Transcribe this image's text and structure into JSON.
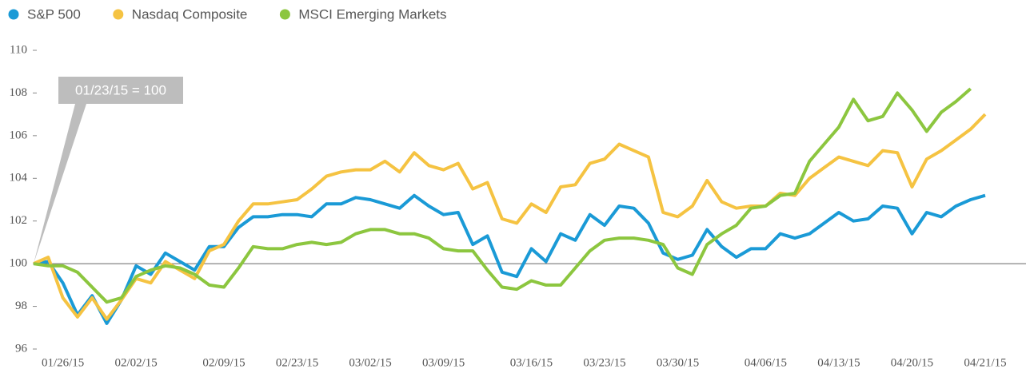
{
  "chart_data": {
    "type": "line",
    "annotation": "01/23/15 = 100",
    "reference_line": 100,
    "categories": [
      null,
      null,
      "01/26/15",
      null,
      null,
      null,
      null,
      "02/02/15",
      null,
      null,
      null,
      null,
      null,
      "02/09/15",
      null,
      null,
      null,
      null,
      "02/23/15",
      null,
      null,
      null,
      null,
      "03/02/15",
      null,
      null,
      null,
      null,
      "03/09/15",
      null,
      null,
      null,
      null,
      null,
      "03/16/15",
      null,
      null,
      null,
      null,
      "03/23/15",
      null,
      null,
      null,
      null,
      "03/30/15",
      null,
      null,
      null,
      null,
      null,
      "04/06/15",
      null,
      null,
      null,
      null,
      "04/13/15",
      null,
      null,
      null,
      null,
      "04/20/15",
      null,
      null,
      null,
      null,
      "04/21/15"
    ],
    "series": [
      {
        "name": "S&P 500",
        "color": "#1a9ad6",
        "values": [
          100,
          100.1,
          99.1,
          97.6,
          98.5,
          97.2,
          98.3,
          99.9,
          99.5,
          100.5,
          100.1,
          99.7,
          100.8,
          100.8,
          101.7,
          102.2,
          102.2,
          102.3,
          102.3,
          102.2,
          102.8,
          102.8,
          103.1,
          103.0,
          102.8,
          102.6,
          103.2,
          102.7,
          102.3,
          102.4,
          100.9,
          101.3,
          99.6,
          99.4,
          100.7,
          100.1,
          101.4,
          101.1,
          102.3,
          101.8,
          102.7,
          102.6,
          101.9,
          100.5,
          100.2,
          100.4,
          101.6,
          100.8,
          100.3,
          100.7,
          100.7,
          101.4,
          101.2,
          101.4,
          101.9,
          102.4,
          102.0,
          102.1,
          102.7,
          102.6,
          101.4,
          102.4,
          102.2,
          102.7,
          103.0,
          103.2
        ]
      },
      {
        "name": "Nasdaq Composite",
        "color": "#f5c342",
        "values": [
          100,
          100.3,
          98.4,
          97.5,
          98.4,
          97.4,
          98.3,
          99.3,
          99.1,
          100.1,
          99.7,
          99.3,
          100.6,
          100.9,
          102.0,
          102.8,
          102.8,
          102.9,
          103.0,
          103.5,
          104.1,
          104.3,
          104.4,
          104.4,
          104.8,
          104.3,
          105.2,
          104.6,
          104.4,
          104.7,
          103.5,
          103.8,
          102.1,
          101.9,
          102.8,
          102.4,
          103.6,
          103.7,
          104.7,
          104.9,
          105.6,
          105.3,
          105.0,
          102.4,
          102.2,
          102.7,
          103.9,
          102.9,
          102.6,
          102.7,
          102.7,
          103.3,
          103.2,
          104.0,
          104.5,
          105.0,
          104.8,
          104.6,
          105.3,
          105.2,
          103.6,
          104.9,
          105.3,
          105.8,
          106.3,
          107.0
        ]
      },
      {
        "name": "MSCI Emerging Markets",
        "color": "#8cc63f",
        "values": [
          100,
          99.9,
          99.9,
          99.6,
          98.9,
          98.2,
          98.4,
          99.4,
          99.7,
          99.9,
          99.8,
          99.5,
          99.0,
          98.9,
          99.8,
          100.8,
          100.7,
          100.7,
          100.9,
          101.0,
          100.9,
          101.0,
          101.4,
          101.6,
          101.6,
          101.4,
          101.4,
          101.2,
          100.7,
          100.6,
          100.6,
          99.7,
          98.9,
          98.8,
          99.2,
          99.0,
          99.0,
          99.8,
          100.6,
          101.1,
          101.2,
          101.2,
          101.1,
          100.9,
          99.8,
          99.5,
          100.9,
          101.4,
          101.8,
          102.6,
          102.7,
          103.2,
          103.3,
          104.8,
          105.6,
          106.4,
          107.7,
          106.7,
          106.9,
          108.0,
          107.2,
          106.2,
          107.1,
          107.6,
          108.2,
          null
        ]
      }
    ],
    "ylim": [
      96,
      110
    ],
    "yticks": [
      96,
      98,
      100,
      102,
      104,
      106,
      108,
      110
    ]
  }
}
